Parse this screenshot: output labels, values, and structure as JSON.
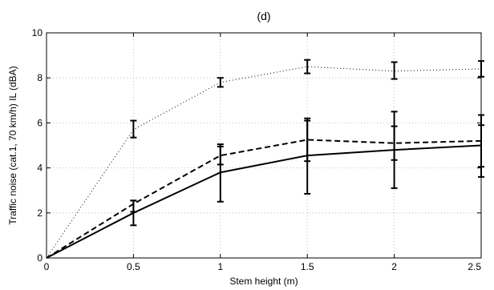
{
  "chart_data": {
    "type": "line",
    "title": "(d)",
    "xlabel": "Stem height (m)",
    "ylabel": "Traffic noise (cat.1, 70 km/h) IL (dBA)",
    "xlim": [
      0,
      2.5
    ],
    "ylim": [
      0,
      10
    ],
    "grid": true,
    "x_ticks": [
      "0",
      "0.5",
      "1",
      "1.5",
      "2",
      "2.5"
    ],
    "y_ticks": [
      "0",
      "2",
      "4",
      "6",
      "8",
      "10"
    ],
    "series": [
      {
        "style": "dotted",
        "color": "#000000",
        "x": [
          0,
          0.5,
          1,
          1.5,
          2,
          2.5
        ],
        "y": [
          0,
          5.7,
          7.8,
          8.5,
          8.3,
          8.4
        ],
        "err_low": [
          0,
          5.35,
          7.6,
          8.2,
          7.95,
          8.05
        ],
        "err_high": [
          0,
          6.1,
          8.0,
          8.8,
          8.7,
          8.75
        ]
      },
      {
        "style": "dashed",
        "color": "#000000",
        "x": [
          0,
          0.5,
          1,
          1.5,
          2,
          2.5
        ],
        "y": [
          0,
          2.4,
          4.55,
          5.25,
          5.1,
          5.2
        ],
        "err_low": [
          0,
          2.05,
          4.15,
          4.3,
          4.35,
          4.05
        ],
        "err_high": [
          0,
          2.55,
          4.95,
          6.1,
          5.85,
          6.35
        ]
      },
      {
        "style": "solid",
        "color": "#000000",
        "x": [
          0,
          0.5,
          1,
          1.5,
          2,
          2.5
        ],
        "y": [
          0,
          2.0,
          3.8,
          4.55,
          4.8,
          5.0
        ],
        "err_low": [
          0,
          1.45,
          2.5,
          2.85,
          3.1,
          3.6
        ],
        "err_high": [
          0,
          2.55,
          5.05,
          6.2,
          6.5,
          5.9
        ]
      }
    ]
  }
}
